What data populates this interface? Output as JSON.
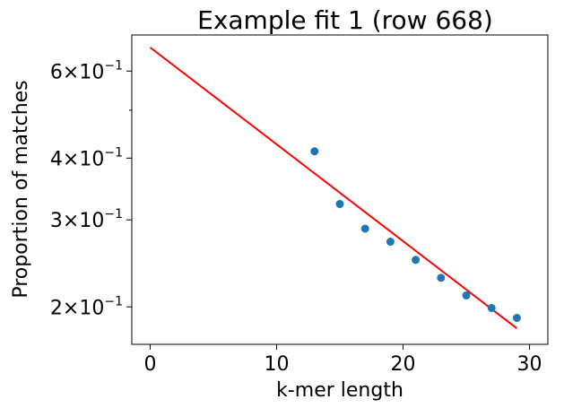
{
  "chart_data": {
    "type": "scatter",
    "title": "Example fit 1 (row 668)",
    "xlabel": "k-mer length",
    "ylabel": "Proportion of matches",
    "xlim": [
      -1.45,
      31.45
    ],
    "ylim": [
      0.168,
      0.71
    ],
    "yscale": "log",
    "grid": false,
    "x_ticks": [
      {
        "value": 0,
        "label": "0"
      },
      {
        "value": 10,
        "label": "10"
      },
      {
        "value": 20,
        "label": "20"
      },
      {
        "value": 30,
        "label": "30"
      }
    ],
    "y_ticks": [
      {
        "value": 0.2,
        "mantissa": "2",
        "base": "10",
        "exponent": "−1"
      },
      {
        "value": 0.3,
        "mantissa": "3",
        "base": "10",
        "exponent": "−1"
      },
      {
        "value": 0.4,
        "mantissa": "4",
        "base": "10",
        "exponent": "−1"
      },
      {
        "value": 0.6,
        "mantissa": "6",
        "base": "10",
        "exponent": "−1"
      }
    ],
    "y_minor_ticks": [
      0.5
    ],
    "series": [
      {
        "kind": "points",
        "color": "#1f77b4",
        "x": [
          13,
          15,
          17,
          19,
          21,
          23,
          25,
          27,
          29
        ],
        "y": [
          0.413,
          0.323,
          0.288,
          0.271,
          0.249,
          0.229,
          0.211,
          0.199,
          0.19
        ]
      },
      {
        "kind": "fit-line",
        "color": "#ff0000",
        "x": [
          0,
          29
        ],
        "y": [
          0.67,
          0.181
        ]
      }
    ]
  }
}
